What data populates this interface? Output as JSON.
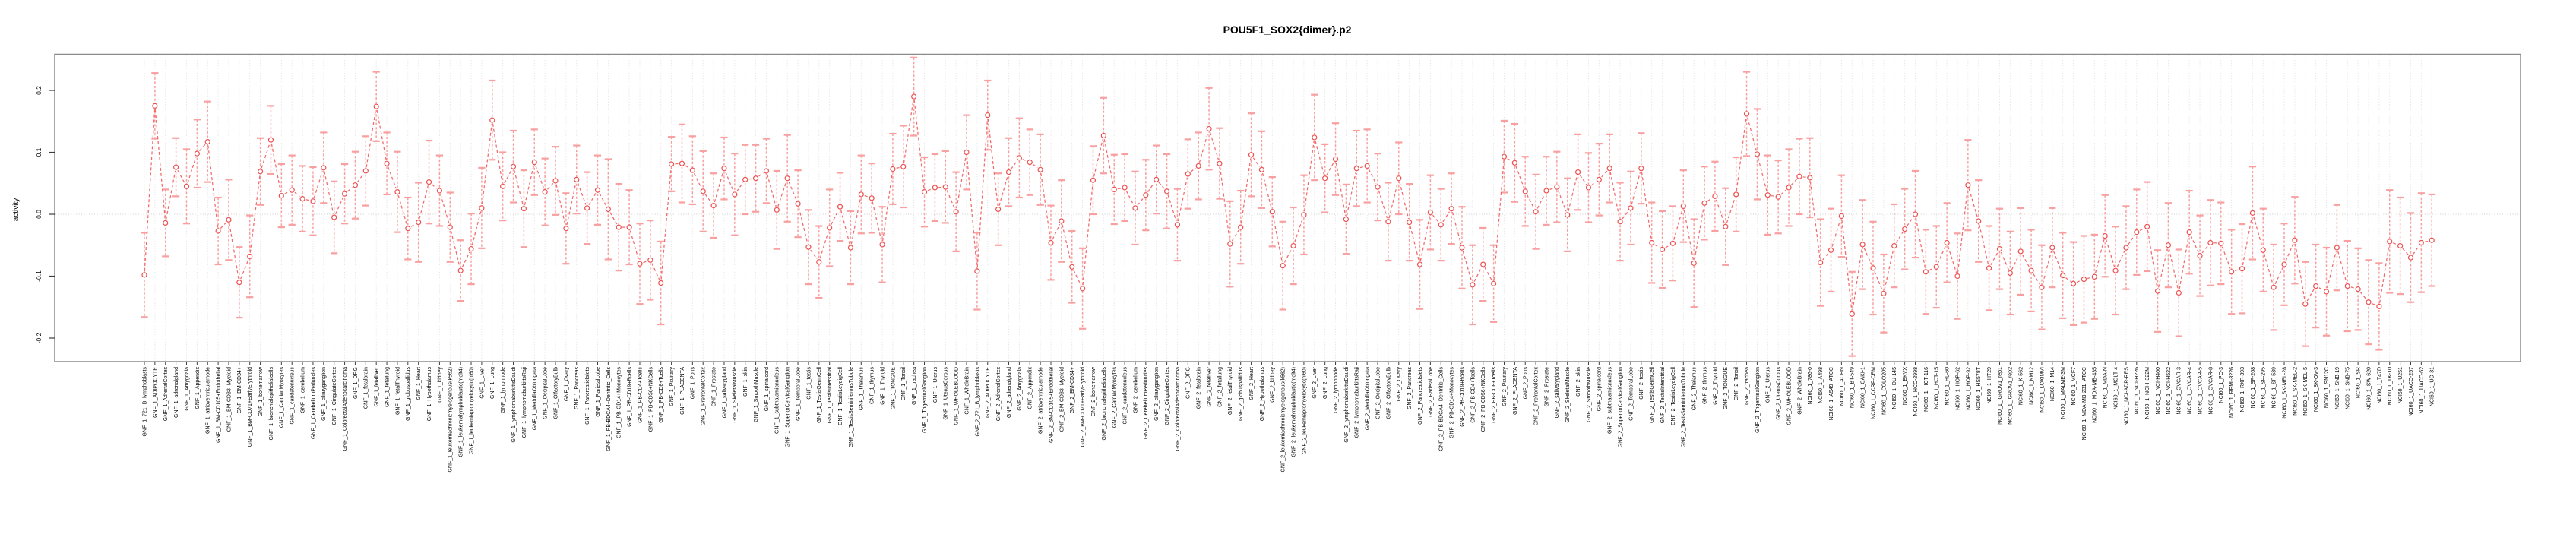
{
  "figure": {
    "title": "POU5F1_SOX2{dimer}.p2"
  },
  "chart_data": {
    "type": "line",
    "title": "POU5F1_SOX2{dimer}.p2",
    "xlabel": "",
    "ylabel": "activity",
    "ylim": [
      -0.238,
      0.259
    ],
    "yticks": [
      0.2,
      0.1,
      0.0,
      -0.1,
      -0.2
    ],
    "ytick_labels": [
      "0.2",
      "0.1",
      "0.0",
      "-0.1",
      "-0.2"
    ],
    "grid": "vertical dotted gridline at every sample; horizontal dotted line at zero",
    "legend_position": "none",
    "marker": "open-circle",
    "line_style": "dashed",
    "error_bars": true,
    "colors": {
      "marker": "#ee5050",
      "line": "#f36a6a",
      "error_bar": "#f8a0a0",
      "gridline": "#dedede",
      "zero_line": "#cccccc",
      "box": "#8a8a8a",
      "tick": "#3c3c3c",
      "text": "#000000"
    },
    "categories": [
      "GNF_1_721_B_lymphoblasts",
      "GNF_1_ADIPOCYTE",
      "GNF_1_AdrenalCortex",
      "GNF_1_adrenalgland",
      "GNF_1_Amygdala",
      "GNF_1_Appendix",
      "GNF_1_atrioventricularnode",
      "GNF_1_BM-CD105+Endothelial",
      "GNF_1_BM-CD33+Myeloid",
      "GNF_1_BM-CD34+",
      "GNF_1_BM-CD71+EarlyErythroid",
      "GNF_1_bonemarrow",
      "GNF_1_bronchialepithelialcells",
      "GNF_1_CardiacMyocytes",
      "GNF_1_caudatenucleus",
      "GNF_1_cerebellum",
      "GNF_1_CerebellumPeduncles",
      "GNF_1_ciliaryganglion",
      "GNF_1_CingulateCortex",
      "GNF_1_ColorectalAdenocarcinoma",
      "GNF_1_DRG",
      "GNF_1_fetalbrain",
      "GNF_1_fetalliver",
      "GNF_1_fetallung",
      "GNF_1_fetalThyroid",
      "GNF_1_globuspallidus",
      "GNF_1_Heart",
      "GNF_1_Hypothalamus",
      "GNF_1_kidney",
      "GNF_1_leukemiachronicmyelogenous(k562)",
      "GNF_1_leukemialymphoblastic(molt4)",
      "GNF_1_leukemiapromyelocytic(hl60)",
      "GNF_1_Liver",
      "GNF_1_Lung",
      "GNF_1_lymphnode",
      "GNF_1_lymphomaburkittsDaudi",
      "GNF_1_lymphomaburkittsRaji",
      "GNF_1_MedullaOblongata",
      "GNF_1_OccipitalLobe",
      "GNF_1_OlfactoryBulb",
      "GNF_1_Ovary",
      "GNF_1_Pancreas",
      "GNF_1_PancreaticIslets",
      "GNF_1_ParietalLobe",
      "GNF_1_PB-BDCA4+Dentritic_Cells",
      "GNF_1_PB-CD14+Monocytes",
      "GNF_1_PB-CD19+Bcells",
      "GNF_1_PB-CD4+Tcells",
      "GNF_1_PB-CD56+NKCells",
      "GNF_1_PB-CD8+Tcells",
      "GNF_1_Pituitary",
      "GNF_1_PLACENTA",
      "GNF_1_Pons",
      "GNF_1_PrefrontalCortex",
      "GNF_1_Prostate",
      "GNF_1_salivarygland",
      "GNF_1_SkeletalMuscle",
      "GNF_1_skin",
      "GNF_1_SmoothMuscle",
      "GNF_1_spinalcord",
      "GNF_1_subthalamicnucleus",
      "GNF_1_SuperiorCervicalGanglion",
      "GNF_1_TemporalLobe",
      "GNF_1_testis",
      "GNF_1_TestisGermCell",
      "GNF_1_TestisInterstitial",
      "GNF_1_TestisLeydigCell",
      "GNF_1_TestisSeminiferousTubule",
      "GNF_1_Thalamus",
      "GNF_1_thymus",
      "GNF_1_Thyroid",
      "GNF_1_TONGUE",
      "GNF_1_Tonsil",
      "GNF_1_trachea",
      "GNF_1_TrigeminalGanglion",
      "GNF_1_Uterus",
      "GNF_1_UterusCorpus",
      "GNF_1_WHOLEBLOOD",
      "GNF_1_WholeBrain",
      "GNF_2_721_B_lymphoblasts",
      "GNF_2_ADIPOCYTE",
      "GNF_2_AdrenalCortex",
      "GNF_2_adrenalgland",
      "GNF_2_Amygdala",
      "GNF_2_Appendix",
      "GNF_2_atrioventricularnode",
      "GNF_2_BM-CD105+Endothelial",
      "GNF_2_BM-CD33+Myeloid",
      "GNF_2_BM-CD34+",
      "GNF_2_BM-CD71+EarlyErythroid",
      "GNF_2_bonemarrow",
      "GNF_2_bronchialepithelialcells",
      "GNF_2_CardiacMyocytes",
      "GNF_2_caudatenucleus",
      "GNF_2_cerebellum",
      "GNF_2_CerebellumPeduncles",
      "GNF_2_ciliaryganglion",
      "GNF_2_CingulateCortex",
      "GNF_2_ColorectalAdenocarcinoma",
      "GNF_2_DRG",
      "GNF_2_fetalbrain",
      "GNF_2_fetalliver",
      "GNF_2_fetallung",
      "GNF_2_fetalThyroid",
      "GNF_2_globuspallidus",
      "GNF_2_Heart",
      "GNF_2_Hypothalamus",
      "GNF_2_kidney",
      "GNF_2_leukemiachronicmyelogenous(k562)",
      "GNF_2_leukemialymphoblastic(molt4)",
      "GNF_2_leukemiapromyelocytic(hl60)",
      "GNF_2_Liver",
      "GNF_2_Lung",
      "GNF_2_lymphnode",
      "GNF_2_lymphomaburkittsDaudi",
      "GNF_2_lymphomaburkittsRaji",
      "GNF_2_MedullaOblongata",
      "GNF_2_OccipitalLobe",
      "GNF_2_OlfactoryBulb",
      "GNF_2_Ovary",
      "GNF_2_Pancreas",
      "GNF_2_PancreaticIslets",
      "GNF_2_ParietalLobe",
      "GNF_2_PB-BDCA4+Dentritic_Cells",
      "GNF_2_PB-CD14+Monocytes",
      "GNF_2_PB-CD19+Bcells",
      "GNF_2_PB-CD4+Tcells",
      "GNF_2_PB-CD56+NKCells",
      "GNF_2_PB-CD8+Tcells",
      "GNF_2_Pituitary",
      "GNF_2_PLACENTA",
      "GNF_2_Pons",
      "GNF_2_PrefrontalCortex",
      "GNF_2_Prostate",
      "GNF_2_salivarygland",
      "GNF_2_SkeletalMuscle",
      "GNF_2_skin",
      "GNF_2_SmoothMuscle",
      "GNF_2_spinalcord",
      "GNF_2_subthalamicnucleus",
      "GNF_2_SuperiorCervicalGanglion",
      "GNF_2_TemporalLobe",
      "GNF_2_testis",
      "GNF_2_TestisGermCell",
      "GNF_2_TestisInterstitial",
      "GNF_2_TestisLeydigCell",
      "GNF_2_TestisSeminiferousTubule",
      "GNF_2_Thalamus",
      "GNF_2_thymus",
      "GNF_2_Thyroid",
      "GNF_2_TONGUE",
      "GNF_2_Tonsil",
      "GNF_2_trachea",
      "GNF_2_TrigeminalGanglion",
      "GNF_2_Uterus",
      "GNF_2_UterusCorpus",
      "GNF_2_WHOLEBLOOD",
      "GNF_2_WholeBrain",
      "NCI60_1_786-0",
      "NCI60_1_A498",
      "NCI60_1_A549_ATCC",
      "NCI60_1_ACHN",
      "NCI60_1_BT-549",
      "NCI60_1_CAKI-1",
      "NCI60_1_CCRF-CEM",
      "NCI60_1_COLO205",
      "NCI60_1_DU-145",
      "NCI60_1_EKVX",
      "NCI60_1_HCC-2998",
      "NCI60_1_HCT-116",
      "NCI60_1_HCT-15",
      "NCI60_1_HL-60",
      "NCI60_1_HOP-62",
      "NCI60_1_HOP-92",
      "NCI60_1_HS578T",
      "NCI60_1_HT29",
      "NCI60_1_IGROV1_rep1",
      "NCI60_1_IGROV1_rep2",
      "NCI60_1_K-562",
      "NCI60_1_KM12",
      "NCI60_1_LOXIMVI",
      "NCI60_1_M14",
      "NCI60_1_MALME-3M",
      "NCI60_1_MCF7",
      "NCI60_1_MDA-MB-231_ATCC",
      "NCI60_1_MDA-MB-435",
      "NCI60_1_MDA-N",
      "NCI60_1_MOLT-4",
      "NCI60_1_NCI-ADR-RES",
      "NCI60_1_NCI-H226",
      "NCI60_1_NCI-H322M",
      "NCI60_1_NCI-H460",
      "NCI60_1_NCI-H522",
      "NCI60_1_OVCAR-3",
      "NCI60_1_OVCAR-4",
      "NCI60_1_OVCAR-5",
      "NCI60_1_OVCAR-8",
      "NCI60_1_PC-3",
      "NCI60_1_RPMI-8226",
      "NCI60_1_RXF-393",
      "NCI60_1_SF-268",
      "NCI60_1_SF-295",
      "NCI60_1_SF-539",
      "NCI60_1_SK-MEL-28",
      "NCI60_1_SK-MEL-2",
      "NCI60_1_SK-MEL-5",
      "NCI60_1_SK-OV-3",
      "NCI60_1_SN12C",
      "NCI60_1_SNB-19",
      "NCI60_1_SNB-75",
      "NCI60_1_SR",
      "NCI60_1_SW-620",
      "NCI60_1_T47D",
      "NCI60_1_TK-10",
      "NCI60_1_U251",
      "NCI60_1_UACC-257",
      "NCI60_1_UACC-62",
      "NCI60_1_UO-31"
    ],
    "values": [
      -0.098,
      0.175,
      -0.014,
      0.076,
      0.045,
      0.098,
      0.117,
      -0.027,
      -0.009,
      -0.11,
      -0.068,
      0.069,
      0.12,
      0.03,
      0.039,
      0.025,
      0.021,
      0.075,
      -0.005,
      0.033,
      0.047,
      0.07,
      0.174,
      0.082,
      0.036,
      -0.023,
      -0.013,
      0.052,
      0.038,
      -0.021,
      -0.091,
      -0.056,
      0.01,
      0.152,
      0.045,
      0.077,
      0.009,
      0.084,
      0.036,
      0.054,
      -0.023,
      0.056,
      0.01,
      0.039,
      0.008,
      -0.021,
      -0.021,
      -0.08,
      -0.074,
      -0.111,
      0.081,
      0.082,
      0.071,
      0.037,
      0.014,
      0.074,
      0.032,
      0.056,
      0.058,
      0.07,
      0.007,
      0.058,
      0.017,
      -0.053,
      -0.077,
      -0.022,
      0.012,
      -0.054,
      0.032,
      0.026,
      -0.049,
      0.073,
      0.077,
      0.19,
      0.036,
      0.043,
      0.044,
      0.004,
      0.1,
      -0.092,
      0.16,
      0.008,
      0.068,
      0.091,
      0.084,
      0.072,
      -0.046,
      -0.011,
      -0.085,
      -0.12,
      0.055,
      0.127,
      0.04,
      0.043,
      0.01,
      0.031,
      0.056,
      0.037,
      -0.017,
      0.065,
      0.078,
      0.138,
      0.082,
      -0.048,
      -0.021,
      0.096,
      0.072,
      0.004,
      -0.083,
      -0.051,
      -0.001,
      0.124,
      0.058,
      0.089,
      -0.008,
      0.074,
      0.078,
      0.044,
      -0.012,
      0.058,
      -0.013,
      -0.081,
      0.003,
      -0.017,
      0.009,
      -0.054,
      -0.114,
      -0.081,
      -0.112,
      0.093,
      0.083,
      0.037,
      0.004,
      0.038,
      0.044,
      -0.001,
      0.068,
      0.043,
      0.056,
      0.074,
      -0.012,
      0.01,
      0.074,
      -0.046,
      -0.057,
      -0.047,
      0.013,
      -0.079,
      0.018,
      0.029,
      -0.02,
      0.032,
      0.162,
      0.097,
      0.031,
      0.028,
      0.043,
      0.061,
      0.059,
      -0.078,
      -0.058,
      -0.003,
      -0.161,
      -0.049,
      -0.087,
      -0.128,
      -0.051,
      -0.024,
      0.0,
      -0.093,
      -0.085,
      -0.046,
      -0.1,
      0.047,
      -0.011,
      -0.087,
      -0.056,
      -0.095,
      -0.06,
      -0.091,
      -0.118,
      -0.054,
      -0.099,
      -0.112,
      -0.105,
      -0.101,
      -0.035,
      -0.091,
      -0.054,
      -0.029,
      -0.02,
      -0.124,
      -0.05,
      -0.127,
      -0.029,
      -0.067,
      -0.046,
      -0.047,
      -0.093,
      -0.088,
      0.002,
      -0.058,
      -0.118,
      -0.081,
      -0.042,
      -0.145,
      -0.116,
      -0.125,
      -0.054,
      -0.116,
      -0.121,
      -0.142,
      -0.149,
      -0.044,
      -0.051,
      -0.07,
      -0.046,
      -0.042
    ],
    "errors": [
      0.068,
      0.053,
      0.054,
      0.047,
      0.06,
      0.055,
      0.065,
      0.054,
      0.065,
      0.057,
      0.066,
      0.054,
      0.055,
      0.051,
      0.056,
      0.053,
      0.055,
      0.057,
      0.058,
      0.048,
      0.054,
      0.056,
      0.056,
      0.05,
      0.065,
      0.05,
      0.064,
      0.067,
      0.057,
      0.056,
      0.049,
      0.057,
      0.065,
      0.064,
      0.055,
      0.058,
      0.062,
      0.053,
      0.054,
      0.055,
      0.057,
      0.055,
      0.058,
      0.056,
      0.081,
      0.07,
      0.06,
      0.065,
      0.064,
      0.067,
      0.044,
      0.063,
      0.055,
      0.065,
      0.052,
      0.05,
      0.066,
      0.056,
      0.054,
      0.052,
      0.063,
      0.07,
      0.054,
      0.06,
      0.058,
      0.062,
      0.055,
      0.059,
      0.063,
      0.056,
      0.061,
      0.057,
      0.066,
      0.063,
      0.056,
      0.054,
      0.058,
      0.064,
      0.06,
      0.062,
      0.056,
      0.058,
      0.055,
      0.064,
      0.053,
      0.057,
      0.06,
      0.066,
      0.058,
      0.065,
      0.055,
      0.061,
      0.056,
      0.054,
      0.059,
      0.057,
      0.055,
      0.06,
      0.058,
      0.056,
      0.054,
      0.066,
      0.057,
      0.069,
      0.059,
      0.067,
      0.062,
      0.056,
      0.071,
      0.062,
      0.064,
      0.069,
      0.055,
      0.058,
      0.056,
      0.061,
      0.059,
      0.054,
      0.063,
      0.058,
      0.062,
      0.072,
      0.06,
      0.058,
      0.057,
      0.066,
      0.064,
      0.059,
      0.062,
      0.058,
      0.063,
      0.056,
      0.06,
      0.055,
      0.057,
      0.059,
      0.061,
      0.056,
      0.058,
      0.055,
      0.063,
      0.059,
      0.057,
      0.065,
      0.062,
      0.06,
      0.058,
      0.071,
      0.059,
      0.056,
      0.062,
      0.06,
      0.068,
      0.073,
      0.064,
      0.059,
      0.062,
      0.061,
      0.064,
      0.07,
      0.067,
      0.066,
      0.068,
      0.072,
      0.075,
      0.063,
      0.067,
      0.065,
      0.07,
      0.068,
      0.066,
      0.064,
      0.069,
      0.073,
      0.066,
      0.068,
      0.065,
      0.067,
      0.07,
      0.066,
      0.068,
      0.064,
      0.069,
      0.067,
      0.07,
      0.068,
      0.066,
      0.071,
      0.067,
      0.069,
      0.072,
      0.066,
      0.068,
      0.07,
      0.067,
      0.065,
      0.069,
      0.066,
      0.068,
      0.072,
      0.075,
      0.067,
      0.069,
      0.066,
      0.07,
      0.068,
      0.067,
      0.071,
      0.069,
      0.073,
      0.066,
      0.068,
      0.07,
      0.083,
      0.078,
      0.072,
      0.08,
      0.074
    ]
  }
}
